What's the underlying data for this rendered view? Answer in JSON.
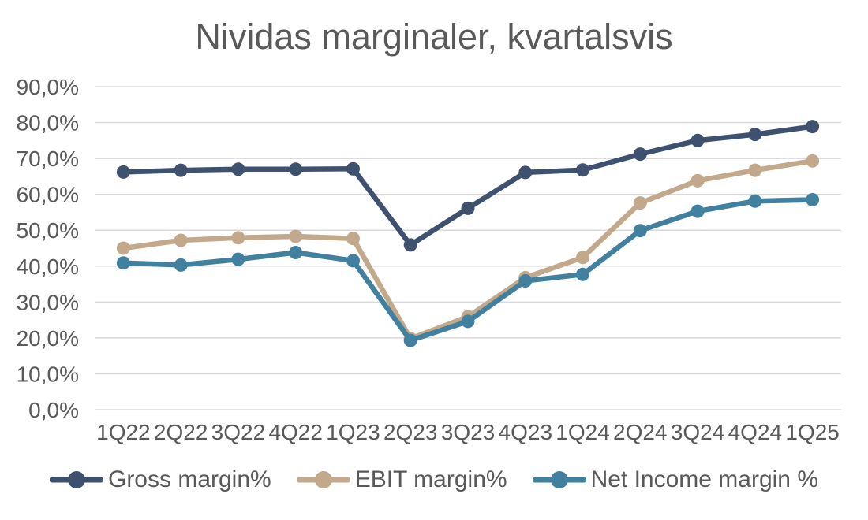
{
  "chart_data": {
    "type": "line",
    "title": "Nividas marginaler, kvartalsvis",
    "xlabel": "",
    "ylabel": "",
    "ylim": [
      0,
      90
    ],
    "grid": true,
    "legend_position": "bottom",
    "y_ticks": [
      "0,0%",
      "10,0%",
      "20,0%",
      "30,0%",
      "40,0%",
      "50,0%",
      "60,0%",
      "70,0%",
      "80,0%",
      "90,0%"
    ],
    "categories": [
      "1Q22",
      "2Q22",
      "3Q22",
      "4Q22",
      "1Q23",
      "2Q23",
      "3Q23",
      "4Q23",
      "1Q24",
      "2Q24",
      "3Q24",
      "4Q24",
      "1Q25"
    ],
    "series": [
      {
        "name": "Gross margin%",
        "color": "#3e526f",
        "values": [
          66.2,
          66.7,
          67.0,
          67.0,
          67.1,
          45.9,
          56.1,
          66.1,
          66.8,
          71.2,
          75.0,
          76.7,
          78.9
        ]
      },
      {
        "name": "EBIT margin%",
        "color": "#c3a98b",
        "values": [
          45.0,
          47.2,
          47.9,
          48.3,
          47.7,
          19.8,
          25.9,
          36.8,
          42.4,
          57.6,
          63.8,
          66.7,
          69.3
        ]
      },
      {
        "name": "Net Income margin %",
        "color": "#41809e",
        "values": [
          40.9,
          40.3,
          41.9,
          43.8,
          41.5,
          19.3,
          24.6,
          35.9,
          37.7,
          49.9,
          55.3,
          58.1,
          58.5
        ]
      }
    ],
    "style": {
      "text_color": "#595959",
      "grid_color": "#d9d9d9",
      "background": "#ffffff"
    }
  }
}
